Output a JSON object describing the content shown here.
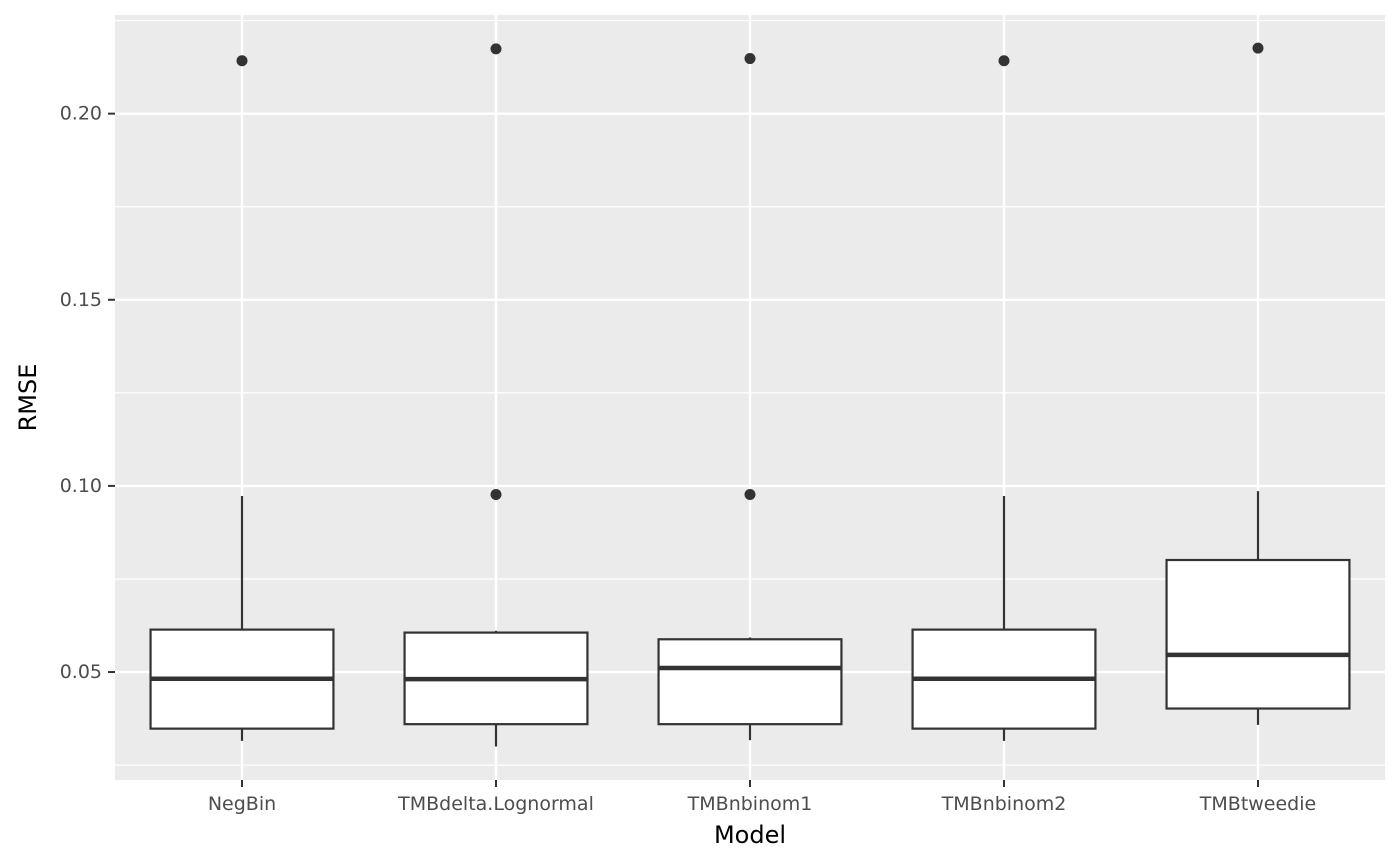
{
  "chart_data": {
    "type": "boxplot",
    "xlabel": "Model",
    "ylabel": "RMSE",
    "categories": [
      "NegBin",
      "TMBdelta.Lognormal",
      "TMBnbinom1",
      "TMBnbinom2",
      "TMBtweedie"
    ],
    "ylim": [
      0.021,
      0.2265
    ],
    "y_ticks": [
      0.05,
      0.1,
      0.15,
      0.2
    ],
    "y_tick_labels": [
      "0.05",
      "0.10",
      "0.15",
      "0.20"
    ],
    "grid": true,
    "boxes": [
      {
        "category": "NegBin",
        "whisker_low": 0.0315,
        "q1": 0.0348,
        "median": 0.0482,
        "q3": 0.0614,
        "whisker_high": 0.0973,
        "outliers": [
          0.2142
        ]
      },
      {
        "category": "TMBdelta.Lognormal",
        "whisker_low": 0.03,
        "q1": 0.036,
        "median": 0.0481,
        "q3": 0.0606,
        "whisker_high": 0.0611,
        "outliers": [
          0.0977,
          0.2174
        ]
      },
      {
        "category": "TMBnbinom1",
        "whisker_low": 0.0317,
        "q1": 0.036,
        "median": 0.0511,
        "q3": 0.0588,
        "whisker_high": 0.0593,
        "outliers": [
          0.0977,
          0.2148
        ]
      },
      {
        "category": "TMBnbinom2",
        "whisker_low": 0.0315,
        "q1": 0.0348,
        "median": 0.0482,
        "q3": 0.0614,
        "whisker_high": 0.0973,
        "outliers": [
          0.2142
        ]
      },
      {
        "category": "TMBtweedie",
        "whisker_low": 0.0358,
        "q1": 0.0402,
        "median": 0.0546,
        "q3": 0.0801,
        "whisker_high": 0.0986,
        "outliers": [
          0.2176
        ]
      }
    ]
  },
  "colors": {
    "panel_background": "#ebebeb",
    "grid": "#ffffff",
    "box_fill": "#ffffff",
    "box_stroke": "#333333",
    "outlier": "#333333",
    "tick_text": "#4d4d4d",
    "axis_title": "#000000"
  }
}
